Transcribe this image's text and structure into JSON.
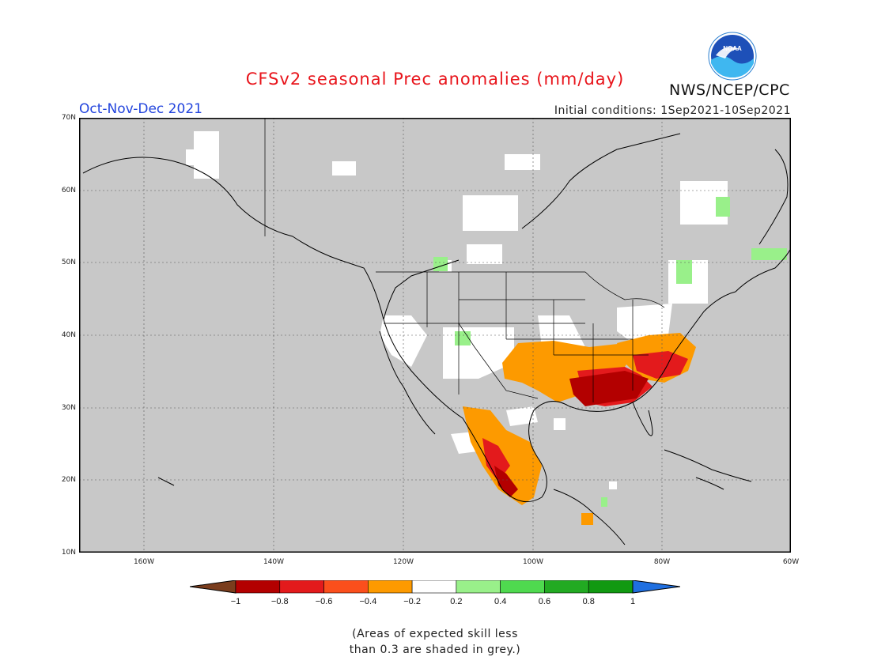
{
  "title": "CFSv2 seasonal Prec anomalies (mm/day)",
  "season": "Oct-Nov-Dec 2021",
  "initial_conditions": "Initial conditions: 1Sep2021-10Sep2021",
  "agency": "NWS/NCEP/CPC",
  "logo_text": "NOAA",
  "note_line1": "(Areas of expected skill less",
  "note_line2": "than 0.3 are shaded in grey.)",
  "lat_labels": [
    "70N",
    "60N",
    "50N",
    "40N",
    "30N",
    "20N",
    "10N"
  ],
  "lon_labels": [
    "160W",
    "140W",
    "120W",
    "100W",
    "80W",
    "60W"
  ],
  "legend": {
    "ticks": [
      "-1",
      "-0.8",
      "-0.6",
      "-0.4",
      "-0.2",
      "0.2",
      "0.4",
      "0.6",
      "0.8",
      "1"
    ],
    "colors": [
      "#7a3d1d",
      "#b30000",
      "#e31a1c",
      "#fb4f1c",
      "#fd9a00",
      "#ffffff",
      "#99f08a",
      "#4fd94f",
      "#22aa22",
      "#119911",
      "#1f6fe0"
    ]
  },
  "colors": {
    "skill_mask": "#c8c8c8",
    "neutral": "#ffffff",
    "dry_strong": "#b30000",
    "dry_moderate": "#e31a1c",
    "dry_weak": "#fd9a00",
    "wet_weak": "#99f08a",
    "border": "#000000"
  }
}
